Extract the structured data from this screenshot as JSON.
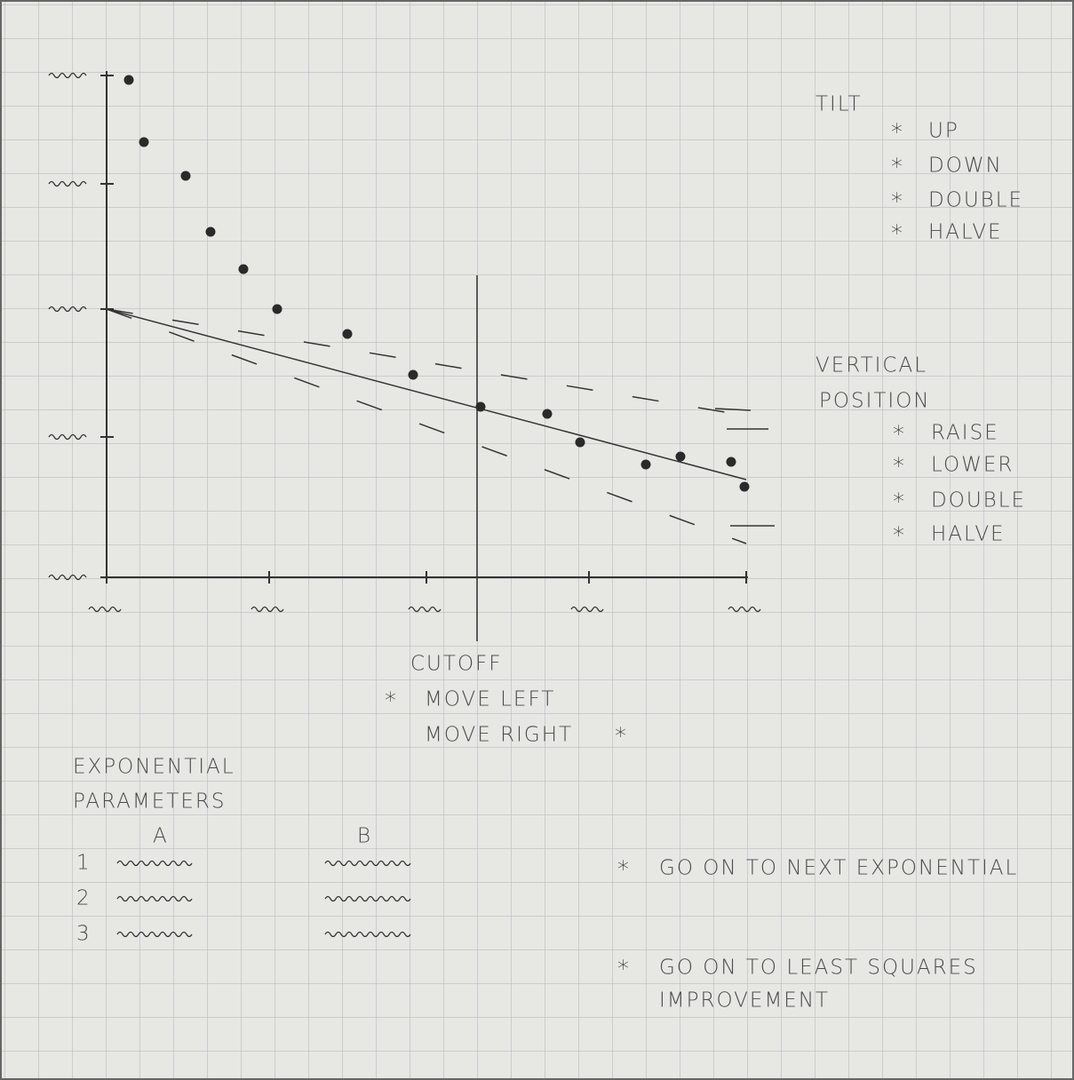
{
  "tilt": {
    "title": "TILT",
    "buttons": [
      "UP",
      "DOWN",
      "DOUBLE",
      "HALVE"
    ]
  },
  "vertical_position": {
    "title": [
      "VERTICAL",
      "POSITION"
    ],
    "buttons": [
      "RAISE",
      "LOWER",
      "DOUBLE",
      "HALVE"
    ]
  },
  "cutoff": {
    "title": "CUTOFF",
    "buttons": [
      "MOVE LEFT",
      "MOVE RIGHT"
    ]
  },
  "exponential_parameters": {
    "title": [
      "EXPONENTIAL",
      "PARAMETERS"
    ],
    "columns": [
      "A",
      "B"
    ],
    "rows": [
      "1",
      "2",
      "3"
    ]
  },
  "actions": [
    {
      "lines": [
        "GO ON TO NEXT EXPONENTIAL"
      ]
    },
    {
      "lines": [
        "GO ON TO LEAST SQUARES",
        "IMPROVEMENT"
      ]
    }
  ],
  "marker": "*"
}
